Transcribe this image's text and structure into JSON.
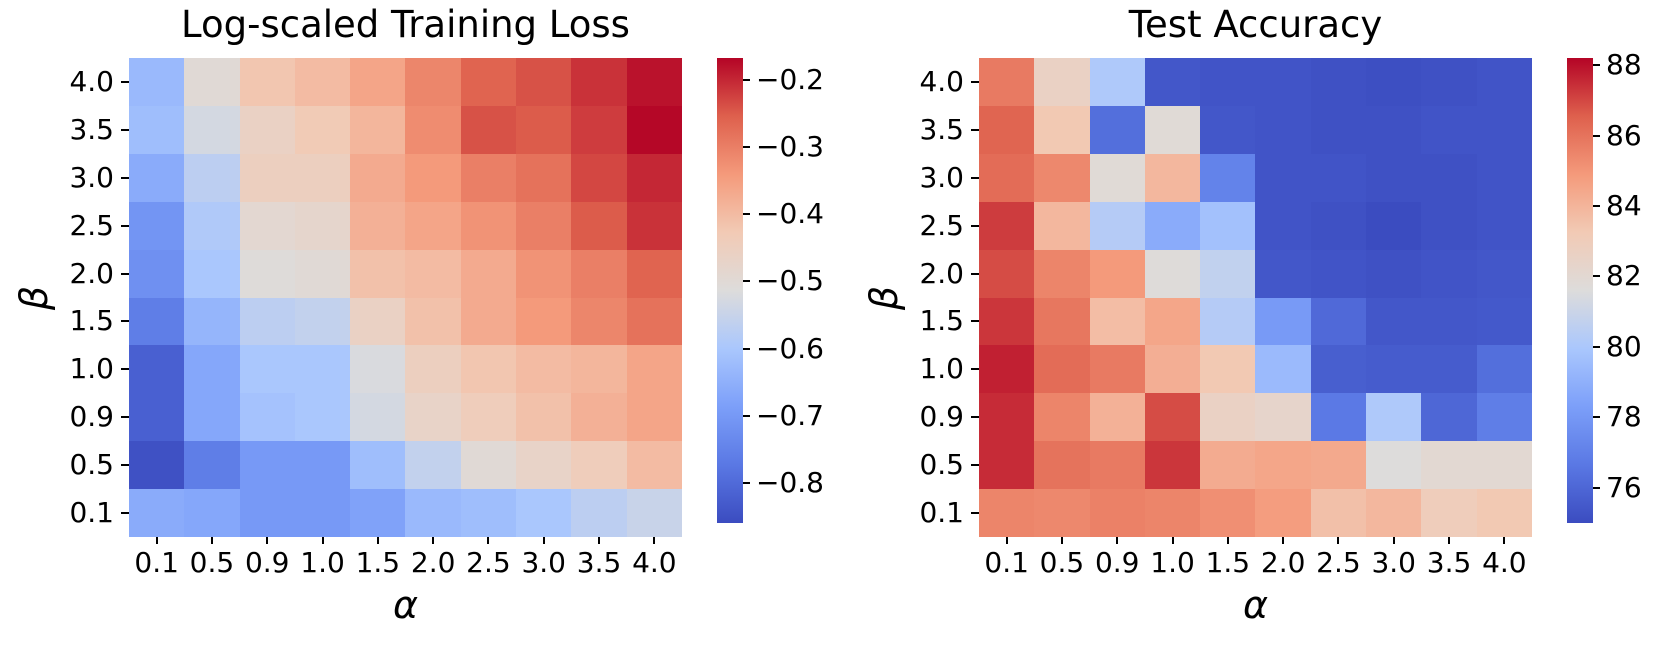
{
  "figure": {
    "background": "#ffffff",
    "colormap_name": "coolwarm",
    "colormap_anchors": [
      {
        "t": 0.0,
        "color": "#3b4cc0"
      },
      {
        "t": 0.125,
        "color": "#5a78e4"
      },
      {
        "t": 0.25,
        "color": "#7c9ff9"
      },
      {
        "t": 0.375,
        "color": "#aac7fd"
      },
      {
        "t": 0.5,
        "color": "#dddcdb"
      },
      {
        "t": 0.625,
        "color": "#f2cab5"
      },
      {
        "t": 0.75,
        "color": "#f49a7b"
      },
      {
        "t": 0.875,
        "color": "#de604d"
      },
      {
        "t": 1.0,
        "color": "#b40426"
      }
    ]
  },
  "chart_data": [
    {
      "type": "heatmap",
      "title": "Log-scaled Training Loss",
      "xlabel": "α",
      "ylabel": "β",
      "x_categories": [
        "0.1",
        "0.5",
        "0.9",
        "1.0",
        "1.5",
        "2.0",
        "2.5",
        "3.0",
        "3.5",
        "4.0"
      ],
      "y_categories": [
        "4.0",
        "3.5",
        "3.0",
        "2.5",
        "2.0",
        "1.5",
        "1.0",
        "0.9",
        "0.5",
        "0.1"
      ],
      "vmin": -0.86,
      "vmax": -0.167,
      "legend_position": "right-colorbar",
      "grid": false,
      "colorbar_ticks": [
        {
          "value": -0.2,
          "label": "−0.2"
        },
        {
          "value": -0.3,
          "label": "−0.3"
        },
        {
          "value": -0.4,
          "label": "−0.4"
        },
        {
          "value": -0.5,
          "label": "−0.5"
        },
        {
          "value": -0.6,
          "label": "−0.6"
        },
        {
          "value": -0.7,
          "label": "−0.7"
        },
        {
          "value": -0.8,
          "label": "−0.8"
        }
      ],
      "values": [
        [
          -0.63,
          -0.5,
          -0.42,
          -0.4,
          -0.36,
          -0.31,
          -0.26,
          -0.24,
          -0.21,
          -0.18
        ],
        [
          -0.62,
          -0.53,
          -0.46,
          -0.43,
          -0.39,
          -0.32,
          -0.24,
          -0.25,
          -0.22,
          -0.17
        ],
        [
          -0.66,
          -0.57,
          -0.45,
          -0.45,
          -0.37,
          -0.34,
          -0.3,
          -0.28,
          -0.23,
          -0.2
        ],
        [
          -0.71,
          -0.59,
          -0.49,
          -0.48,
          -0.38,
          -0.36,
          -0.33,
          -0.3,
          -0.25,
          -0.21
        ],
        [
          -0.72,
          -0.6,
          -0.51,
          -0.5,
          -0.41,
          -0.4,
          -0.37,
          -0.33,
          -0.3,
          -0.26
        ],
        [
          -0.76,
          -0.64,
          -0.57,
          -0.56,
          -0.46,
          -0.41,
          -0.37,
          -0.34,
          -0.31,
          -0.28
        ],
        [
          -0.82,
          -0.67,
          -0.6,
          -0.6,
          -0.52,
          -0.45,
          -0.42,
          -0.4,
          -0.39,
          -0.36
        ],
        [
          -0.82,
          -0.67,
          -0.61,
          -0.6,
          -0.53,
          -0.47,
          -0.44,
          -0.41,
          -0.38,
          -0.36
        ],
        [
          -0.85,
          -0.76,
          -0.7,
          -0.7,
          -0.62,
          -0.56,
          -0.5,
          -0.47,
          -0.44,
          -0.4
        ],
        [
          -0.66,
          -0.67,
          -0.7,
          -0.7,
          -0.68,
          -0.63,
          -0.62,
          -0.6,
          -0.57,
          -0.55
        ]
      ]
    },
    {
      "type": "heatmap",
      "title": "Test Accuracy",
      "xlabel": "α",
      "ylabel": "β",
      "x_categories": [
        "0.1",
        "0.5",
        "0.9",
        "1.0",
        "1.5",
        "2.0",
        "2.5",
        "3.0",
        "3.5",
        "4.0"
      ],
      "y_categories": [
        "4.0",
        "3.5",
        "3.0",
        "2.5",
        "2.0",
        "1.5",
        "1.0",
        "0.9",
        "0.5",
        "0.1"
      ],
      "vmin": 75.0,
      "vmax": 88.2,
      "legend_position": "right-colorbar",
      "grid": false,
      "colorbar_ticks": [
        {
          "value": 88,
          "label": "88"
        },
        {
          "value": 86,
          "label": "86"
        },
        {
          "value": 84,
          "label": "84"
        },
        {
          "value": 82,
          "label": "82"
        },
        {
          "value": 80,
          "label": "80"
        },
        {
          "value": 78,
          "label": "78"
        },
        {
          "value": 76,
          "label": "76"
        }
      ],
      "values": [
        [
          85.8,
          82.6,
          80.1,
          75.4,
          75.3,
          75.3,
          75.2,
          75.1,
          75.2,
          75.3
        ],
        [
          86.4,
          83.3,
          76.3,
          81.8,
          75.4,
          75.3,
          75.2,
          75.2,
          75.3,
          75.3
        ],
        [
          86.2,
          85.4,
          81.8,
          83.9,
          77.1,
          75.3,
          75.3,
          75.2,
          75.2,
          75.3
        ],
        [
          87.2,
          83.9,
          80.3,
          78.8,
          79.7,
          75.3,
          75.2,
          75.0,
          75.2,
          75.3
        ],
        [
          86.9,
          85.5,
          84.9,
          81.7,
          80.7,
          75.4,
          75.3,
          75.2,
          75.3,
          75.4
        ],
        [
          87.3,
          85.9,
          83.7,
          84.5,
          80.3,
          78.1,
          76.1,
          75.4,
          75.4,
          75.5
        ],
        [
          87.7,
          86.2,
          85.8,
          84.2,
          83.3,
          79.4,
          75.7,
          75.6,
          75.6,
          76.3
        ],
        [
          87.5,
          85.5,
          84.1,
          86.9,
          82.6,
          82.3,
          76.7,
          80.1,
          76.0,
          76.9
        ],
        [
          87.5,
          86.0,
          85.8,
          87.3,
          84.3,
          84.5,
          84.4,
          81.6,
          82.0,
          82.0
        ],
        [
          85.5,
          85.4,
          85.6,
          85.5,
          85.2,
          84.8,
          83.6,
          83.9,
          83.0,
          83.3
        ]
      ]
    }
  ]
}
